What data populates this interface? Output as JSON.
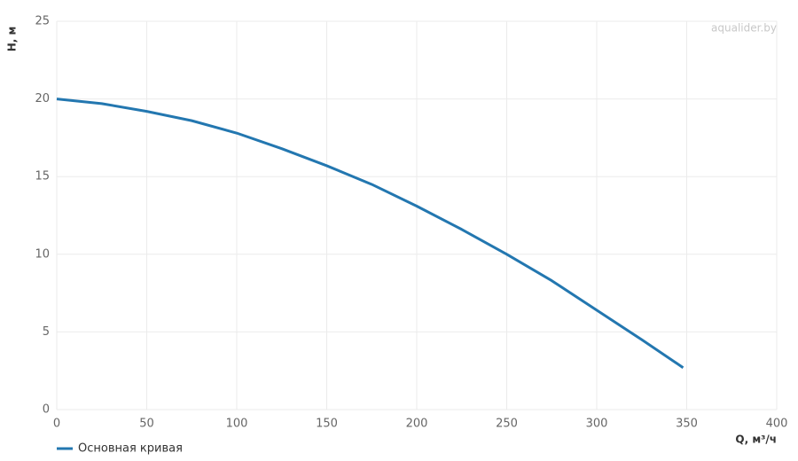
{
  "chart_data": {
    "type": "line",
    "watermark": "aqualider.by",
    "x_label": "Q, м³/ч",
    "y_label": "H, м",
    "x": [
      0,
      25,
      50,
      75,
      100,
      125,
      150,
      175,
      200,
      225,
      250,
      275,
      300,
      325,
      348
    ],
    "series": [
      {
        "name": "Основная кривая",
        "color": "#2377b0",
        "values": [
          20,
          19.7,
          19.2,
          18.6,
          17.8,
          16.8,
          15.7,
          14.5,
          13.1,
          11.6,
          10.0,
          8.3,
          6.4,
          4.5,
          2.7
        ]
      }
    ],
    "xlim": [
      0,
      400
    ],
    "xticks": [
      0,
      50,
      100,
      150,
      200,
      250,
      300,
      350,
      400
    ],
    "ylim": [
      0,
      25
    ],
    "yticks": [
      0,
      5,
      10,
      15,
      20,
      25
    ],
    "grid": true
  }
}
